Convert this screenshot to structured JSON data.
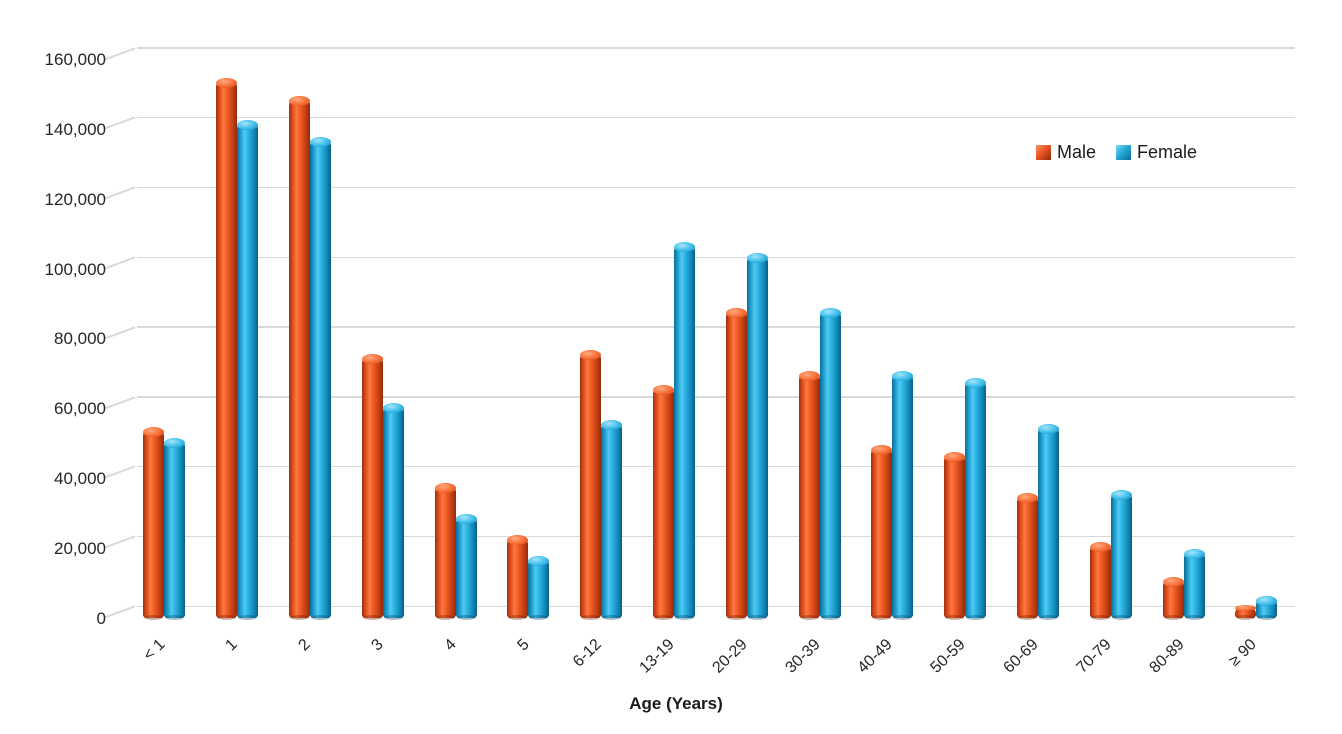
{
  "chart_data": {
    "type": "bar",
    "bar_style": "3d-cylinder",
    "title": "",
    "xlabel": "Age (Years)",
    "ylabel": "",
    "categories": [
      "< 1",
      "1",
      "2",
      "3",
      "4",
      "5",
      "6-12",
      "13-19",
      "20-29",
      "30-39",
      "40-49",
      "50-59",
      "60-69",
      "70-79",
      "80-89",
      "≥ 90"
    ],
    "series": [
      {
        "name": "Male",
        "color": "#E8511F",
        "values": [
          53000,
          153000,
          148000,
          74000,
          37000,
          22000,
          75000,
          65000,
          87000,
          69000,
          48000,
          46000,
          34000,
          20000,
          10000,
          2000
        ]
      },
      {
        "name": "Female",
        "color": "#29B2E2",
        "values": [
          50000,
          141000,
          136000,
          60000,
          28000,
          16000,
          55000,
          106000,
          103000,
          87000,
          69000,
          67000,
          54000,
          35000,
          18000,
          4500
        ]
      }
    ],
    "ylim": [
      0,
      160000
    ],
    "ytick_step": 20000,
    "ytick_labels": [
      "0",
      "20,000",
      "40,000",
      "60,000",
      "80,000",
      "100,000",
      "120,000",
      "140,000",
      "160,000"
    ],
    "grid": true,
    "legend_position": "top-right",
    "background": "#FFFFFF",
    "gridline_color": "#D9D9D9",
    "text_color": "#262626"
  }
}
